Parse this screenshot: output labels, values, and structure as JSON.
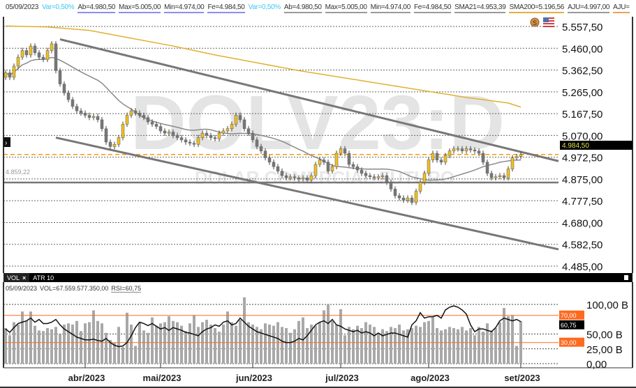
{
  "header": {
    "date": "05/09/2023",
    "items": [
      {
        "text": "Var=0,50%",
        "style": "var"
      },
      {
        "text": "Ab=4.980,50",
        "style": "u-blue"
      },
      {
        "text": "Max=5.005,00",
        "style": "u-blue"
      },
      {
        "text": "Min=4.974,00",
        "style": "u-blue"
      },
      {
        "text": "Fe=4.984,50",
        "style": "u-blue"
      },
      {
        "text": "Var=0,50%",
        "style": "var"
      },
      {
        "text": "Ab=4.980,50",
        "style": "u-gray"
      },
      {
        "text": "Max=5.005,00",
        "style": "u-gray"
      },
      {
        "text": "Min=4.974,00",
        "style": "u-gray"
      },
      {
        "text": "Fe=4.984,50",
        "style": "u-gray"
      },
      {
        "text": "SMA21=4.953,39",
        "style": "u-gray"
      },
      {
        "text": "SMA200=5.196,56",
        "style": "u-gold"
      },
      {
        "text": "AJU=4.997,00",
        "style": "u-gray"
      },
      {
        "text": "AJU=",
        "style": "u-orange"
      }
    ]
  },
  "watermark": {
    "symbol": "DOLV23:D",
    "description": "DOLAR COMERCIAL FUTURO"
  },
  "icons": {
    "currency": "dollar-coin-icon",
    "flag": "us-flag-icon",
    "expand": "chevron-right-icon"
  },
  "colors": {
    "up": "#f0c020",
    "down": "#777777",
    "sma21": "#8a8a8a",
    "sma200": "#e0b030",
    "last_price_line": "#ff9900",
    "rsi_band": "#ff6a20",
    "volume": "#a8a8a8",
    "rsi": "#111111"
  },
  "chart_data": [
    {
      "type": "candlestick",
      "title": "DOLV23:D",
      "price_axis": {
        "ticks": [
          "5.557,50",
          "5.460,00",
          "5.362,50",
          "5.265,00",
          "5.167,50",
          "5.070,00",
          "4.972,50",
          "4.875,00",
          "4.777,50",
          "4.680,00",
          "4.582,50",
          "4.485,00"
        ],
        "range": [
          4485,
          5557.5
        ]
      },
      "time_axis": {
        "labels": [
          "abr/2023",
          "mai/2023",
          "jun/2023",
          "jul/2023",
          "ago/2023",
          "set/2023"
        ],
        "label_index": [
          19,
          37,
          59,
          80,
          101,
          123
        ]
      },
      "last_price_label": "4.984,50",
      "last_price": 4984.5,
      "reference_line": {
        "label": "4.859,22",
        "value": 4859.22
      },
      "closes": [
        5350,
        5330,
        5380,
        5420,
        5450,
        5430,
        5470,
        5440,
        5420,
        5410,
        5450,
        5480,
        5360,
        5300,
        5260,
        5230,
        5200,
        5180,
        5170,
        5160,
        5150,
        5155,
        5140,
        5100,
        5040,
        5020,
        5030,
        5060,
        5120,
        5160,
        5180,
        5170,
        5160,
        5150,
        5130,
        5120,
        5110,
        5090,
        5080,
        5085,
        5070,
        5060,
        5050,
        5040,
        5035,
        5030,
        5060,
        5080,
        5070,
        5060,
        5055,
        5080,
        5090,
        5100,
        5120,
        5160,
        5140,
        5100,
        5080,
        5050,
        5020,
        5000,
        4970,
        4950,
        4930,
        4910,
        4890,
        4880,
        4885,
        4880,
        4875,
        4880,
        4870,
        4890,
        4940,
        4960,
        4950,
        4910,
        4930,
        4990,
        5010,
        4990,
        4940,
        4930,
        4915,
        4900,
        4890,
        4885,
        4880,
        4885,
        4890,
        4860,
        4830,
        4800,
        4790,
        4780,
        4790,
        4770,
        4820,
        4860,
        4900,
        4960,
        4990,
        4960,
        4950,
        4980,
        5000,
        5010,
        5010,
        5000,
        5010,
        5005,
        5000,
        4990,
        4950,
        4900,
        4880,
        4885,
        4890,
        4880,
        4920,
        4970,
        4975,
        4984.5
      ],
      "first_open": 5330,
      "sma200": {
        "every": 10,
        "values": [
          5560,
          5555,
          5540,
          5505,
          5470,
          5430,
          5395,
          5360,
          5330,
          5300,
          5270,
          5240,
          5215
        ],
        "last": 5196.56
      },
      "sma21_last": 4953.39,
      "trend_lines": [
        {
          "from": [
            13,
            5500
          ],
          "to": [
            132,
            4955
          ]
        },
        {
          "from": [
            12,
            5060
          ],
          "to": [
            132,
            4560
          ]
        }
      ]
    },
    {
      "type": "bar+line",
      "tabs": [
        "VOL",
        "ATR 10"
      ],
      "info": {
        "date": "05/09/2023",
        "vol": "VOL=67.559.577.350,00",
        "rsi": "RSI=60,75"
      },
      "volume_axis": {
        "ticks": [
          "100,00 B",
          "50,00 B",
          "25,00 B",
          "0,00"
        ],
        "unit": "B"
      },
      "rsi_levels": {
        "upper": 70,
        "lower": 30,
        "upper_label": "70,00",
        "lower_label": "30,00",
        "last_label": "60,75"
      },
      "volume_billions": [
        60,
        48,
        70,
        66,
        88,
        72,
        88,
        64,
        56,
        55,
        60,
        58,
        62,
        50,
        66,
        68,
        66,
        72,
        55,
        68,
        70,
        90,
        72,
        68,
        52,
        40,
        35,
        62,
        28,
        86,
        66,
        30,
        70,
        56,
        52,
        78,
        64,
        68,
        70,
        80,
        72,
        70,
        64,
        55,
        68,
        82,
        62,
        70,
        74,
        66,
        60,
        54,
        66,
        88,
        70,
        64,
        74,
        112,
        70,
        66,
        62,
        58,
        68,
        66,
        64,
        70,
        62,
        60,
        52,
        58,
        72,
        78,
        60,
        66,
        64,
        70,
        90,
        100,
        72,
        66,
        92,
        48,
        62,
        58,
        64,
        60,
        70,
        66,
        62,
        52,
        58,
        55,
        62,
        60,
        66,
        56,
        58,
        60,
        64,
        62,
        70,
        72,
        78,
        60,
        56,
        58,
        62,
        60,
        58,
        62,
        56,
        60,
        48,
        62,
        54,
        68,
        56,
        60,
        70,
        94,
        80,
        82,
        30,
        72
      ],
      "rsi": [
        50,
        45,
        52,
        58,
        60,
        62,
        66,
        60,
        64,
        58,
        58,
        60,
        64,
        56,
        50,
        46,
        42,
        38,
        36,
        34,
        34,
        35,
        33,
        32,
        36,
        30,
        26,
        24,
        25,
        30,
        40,
        52,
        60,
        58,
        55,
        58,
        54,
        50,
        52,
        48,
        52,
        50,
        48,
        45,
        44,
        42,
        40,
        46,
        50,
        52,
        56,
        54,
        60,
        62,
        56,
        58,
        66,
        60,
        54,
        50,
        46,
        44,
        42,
        40,
        38,
        36,
        32,
        30,
        30,
        32,
        36,
        34,
        40,
        48,
        56,
        60,
        62,
        58,
        64,
        56,
        54,
        50,
        48,
        46,
        48,
        44,
        46,
        44,
        40,
        44,
        40,
        42,
        44,
        44,
        42,
        40,
        38,
        56,
        62,
        74,
        66,
        68,
        68,
        70,
        66,
        78,
        82,
        84,
        82,
        78,
        72,
        56,
        46,
        50,
        50,
        48,
        46,
        52,
        62,
        66,
        64,
        62,
        64,
        60.75
      ]
    }
  ]
}
